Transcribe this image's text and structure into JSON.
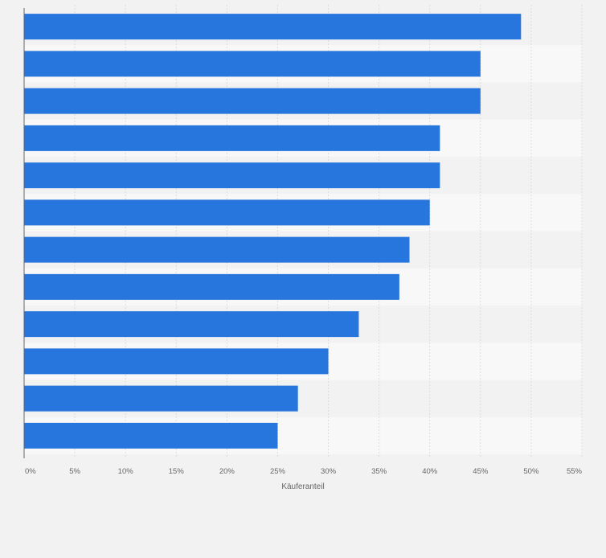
{
  "chart_data": {
    "type": "bar",
    "orientation": "horizontal",
    "title": "",
    "xlabel": "Käuferanteil",
    "ylabel": "",
    "categories": [
      "",
      "",
      "",
      "",
      "",
      "",
      "",
      "",
      "",
      "",
      "",
      ""
    ],
    "values": [
      49,
      45,
      45,
      41,
      41,
      40,
      38,
      37,
      33,
      30,
      27,
      25
    ],
    "xlim": [
      0,
      55
    ],
    "x_ticks": [
      0,
      5,
      10,
      15,
      20,
      25,
      30,
      35,
      40,
      45,
      50,
      55
    ],
    "x_tick_labels": [
      "0%",
      "5%",
      "10%",
      "15%",
      "20%",
      "25%",
      "30%",
      "35%",
      "40%",
      "45%",
      "50%",
      "55%"
    ],
    "grid": true,
    "legend": "none",
    "colors": {
      "bar": "#2776dd",
      "background": "#f2f2f2",
      "band_light": "#f8f8f8",
      "band_dark": "#f2f2f2",
      "grid": "#dcdcdc",
      "axis": "#666666",
      "tick_text": "#666666"
    }
  }
}
